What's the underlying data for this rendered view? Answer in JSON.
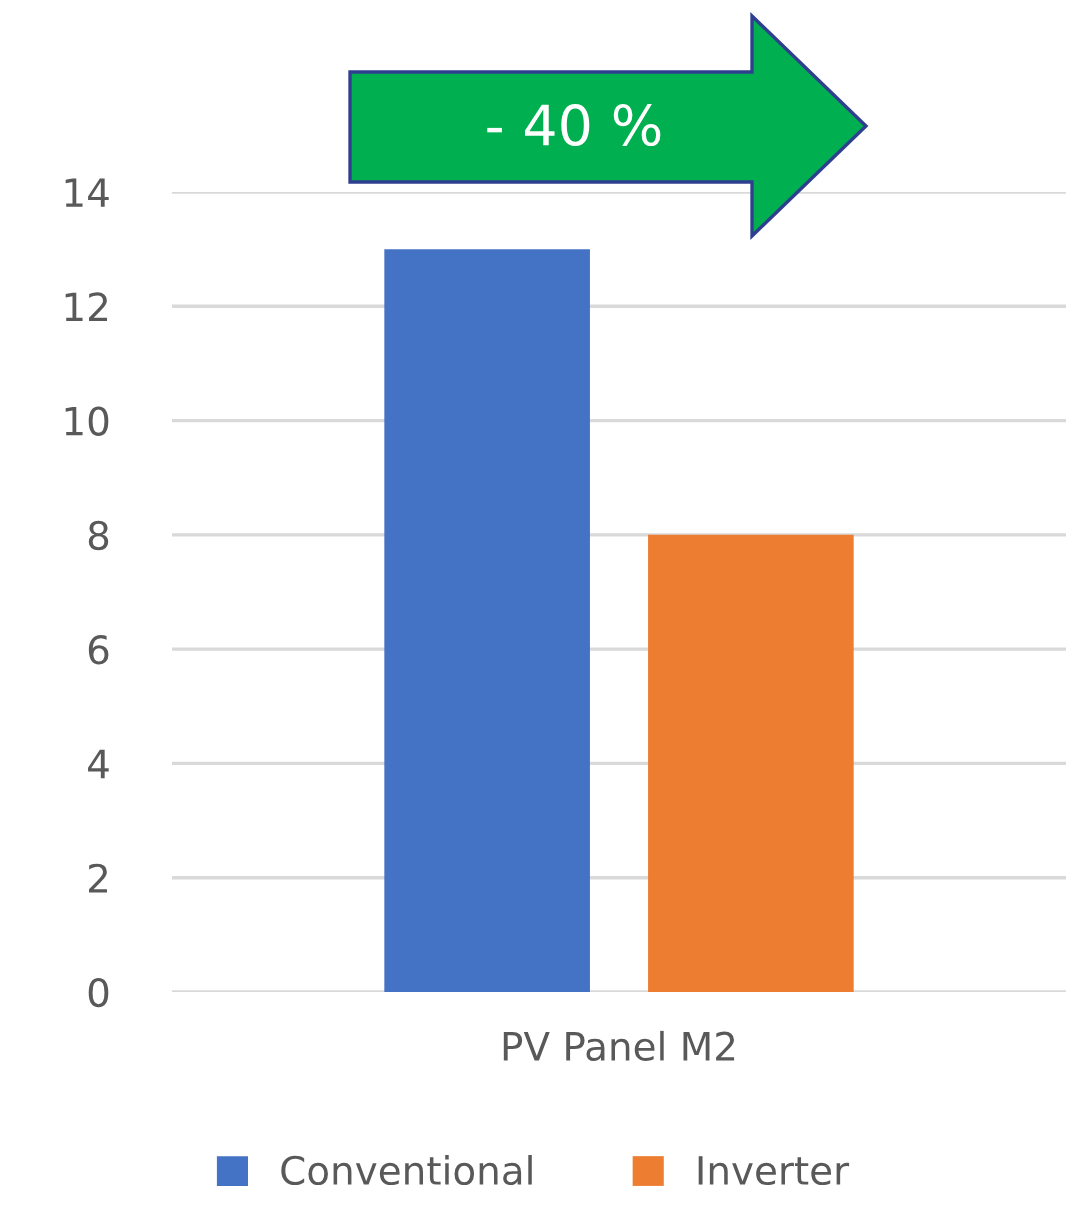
{
  "chart_data": {
    "type": "bar",
    "categories": [
      "PV Panel M2"
    ],
    "series": [
      {
        "name": "Conventional",
        "color": "#4472c4",
        "values": [
          13
        ]
      },
      {
        "name": "Inverter",
        "color": "#ed7d31",
        "values": [
          8
        ]
      }
    ],
    "ylim": [
      0,
      14
    ],
    "yticks": [
      0,
      2,
      4,
      6,
      8,
      10,
      12,
      14
    ],
    "grid": "y",
    "legend": "bottom",
    "annotations": [
      "- 40 %"
    ]
  }
}
